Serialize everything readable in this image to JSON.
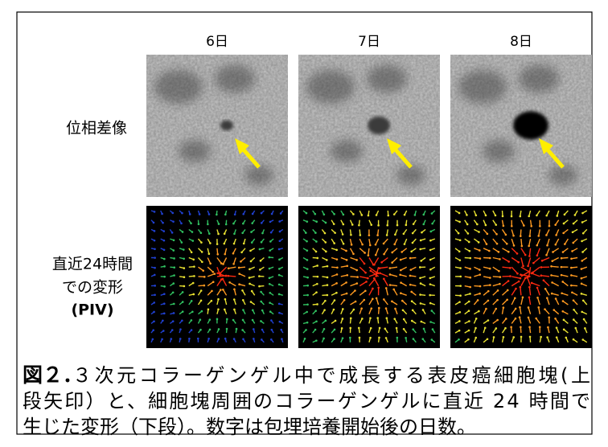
{
  "columns": [
    "6日",
    "7日",
    "8日"
  ],
  "row_labels": [
    [
      "位相差像"
    ],
    [
      "直近24時間",
      "での変形",
      "(PIV)"
    ]
  ],
  "caption": {
    "label": "図２．",
    "lines": [
      "３次元コラーゲンゲル中で成長する表皮癌細胞塊(上",
      "段矢印）と、細胞塊周囲のコラーゲンゲルに直近 24 時間で",
      "生じた変形（下段）。数字は包埋培養開始後の日数。"
    ]
  }
}
